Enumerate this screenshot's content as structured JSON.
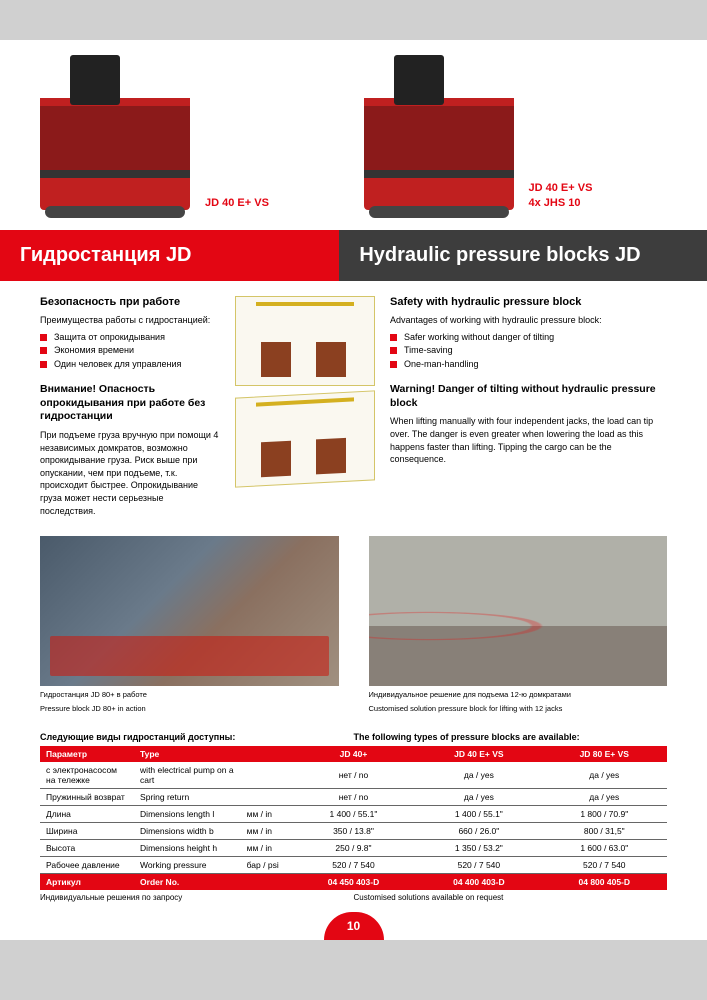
{
  "products": [
    {
      "label": "JD 40 E+ VS"
    },
    {
      "label": "JD 40 E+ VS\n4x JHS 10"
    }
  ],
  "headers": {
    "red": "Гидростанция JD",
    "black": "Hydraulic pressure blocks JD"
  },
  "left": {
    "safety_head": "Безопасность при работе",
    "safety_intro": "Преимущества работы с гидростанцией:",
    "safety_bullets": [
      "Защита от опрокидывания",
      "Экономия времени",
      "Один человек для управления"
    ],
    "warning_head": "Внимание! Опасность опрокидывания при работе без гидростанции",
    "warning_body": "При подъеме груза вручную при помощи 4 независимых домкратов, возможно опрокидывание груза. Риск выше при опускании, чем при подъеме, т.к. происходит быстрее. Опрокидывание груза может нести серьезные последствия."
  },
  "right": {
    "safety_head": "Safety with hydraulic pressure block",
    "safety_intro": "Advantages of working with hydraulic pressure block:",
    "safety_bullets": [
      "Safer working without danger of tilting",
      "Time-saving",
      "One-man-handling"
    ],
    "warning_head": "Warning! Danger of tilting without hydraulic pressure block",
    "warning_body": "When lifting manually with four independent jacks, the load can tip over. The danger is even greater when lowering the load as this happens faster than lifting. Tipping the cargo can be the consequence."
  },
  "captions": {
    "left_ru": "Гидростанция JD 80+ в работе",
    "left_en": "Pressure block JD 80+ in action",
    "right_ru": "Индивидуальное решение для подъема 12-ю домкратами",
    "right_en": "Customised solution pressure block for lifting with 12 jacks"
  },
  "table_intro": {
    "left": "Следующие виды гидростанций доступны:",
    "right": "The following types of pressure blocks are available:"
  },
  "table": {
    "header": [
      "Параметр",
      "Type",
      "",
      "JD 40+",
      "JD 40 E+ VS",
      "JD 80 E+ VS"
    ],
    "rows": [
      [
        "с электронасосом на тележке",
        "with electrical pump on a cart",
        "",
        "нет / no",
        "да / yes",
        "да / yes"
      ],
      [
        "Пружинный возврат",
        "Spring return",
        "",
        "нет / no",
        "да / yes",
        "да / yes"
      ],
      [
        "Длина",
        "Dimensions length   l",
        "мм / in",
        "1 400 / 55.1\"",
        "1 400 / 55.1\"",
        "1 800 / 70.9\""
      ],
      [
        "Ширина",
        "Dimensions width   b",
        "мм / in",
        "350 / 13.8\"",
        "660 / 26.0\"",
        "800 / 31,5\""
      ],
      [
        "Высота",
        "Dimensions height   h",
        "мм / in",
        "250 / 9.8\"",
        "1 350 / 53.2\"",
        "1 600 / 63.0\""
      ],
      [
        "Рабочее давление",
        "Working pressure",
        "бар / psi",
        "520 / 7 540",
        "520 / 7 540",
        "520 / 7 540"
      ]
    ],
    "order": [
      "Артикул",
      "Order No.",
      "",
      "04 450 403-D",
      "04 400 403-D",
      "04 800 405-D"
    ]
  },
  "footnotes": {
    "left": "Индивидуальные решения по запросу",
    "right": "Customised solutions available on request"
  },
  "page_number": "10",
  "colors": {
    "red": "#e30613",
    "black": "#3d3d3d",
    "gray_bg": "#d0d0d0"
  }
}
